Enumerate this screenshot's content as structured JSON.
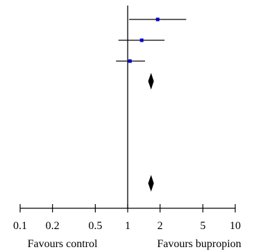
{
  "chart_data": {
    "type": "scatter",
    "subtype": "forest-plot",
    "x_scale": "log",
    "xlim": [
      0.1,
      10
    ],
    "xticks": [
      0.1,
      0.2,
      0.5,
      1,
      2,
      5,
      10
    ],
    "xtick_labels": [
      "0.1",
      "0.2",
      "0.5",
      "1",
      "2",
      "5",
      "10"
    ],
    "reference_line": 1,
    "studies": [
      {
        "estimate": 1.9,
        "ci": [
          1.03,
          3.5
        ]
      },
      {
        "estimate": 1.35,
        "ci": [
          0.82,
          2.2
        ]
      },
      {
        "estimate": 1.05,
        "ci": [
          0.78,
          1.45
        ]
      }
    ],
    "pooled": [
      {
        "estimate": 1.65,
        "ci": [
          1.55,
          1.75
        ]
      },
      {
        "estimate": 1.65,
        "ci": [
          1.55,
          1.75
        ]
      }
    ],
    "left_label": "Favours control",
    "right_label": "Favours bupropion",
    "colors": {
      "point": "#0000cc",
      "line": "#000000",
      "diamond": "#000000"
    }
  }
}
